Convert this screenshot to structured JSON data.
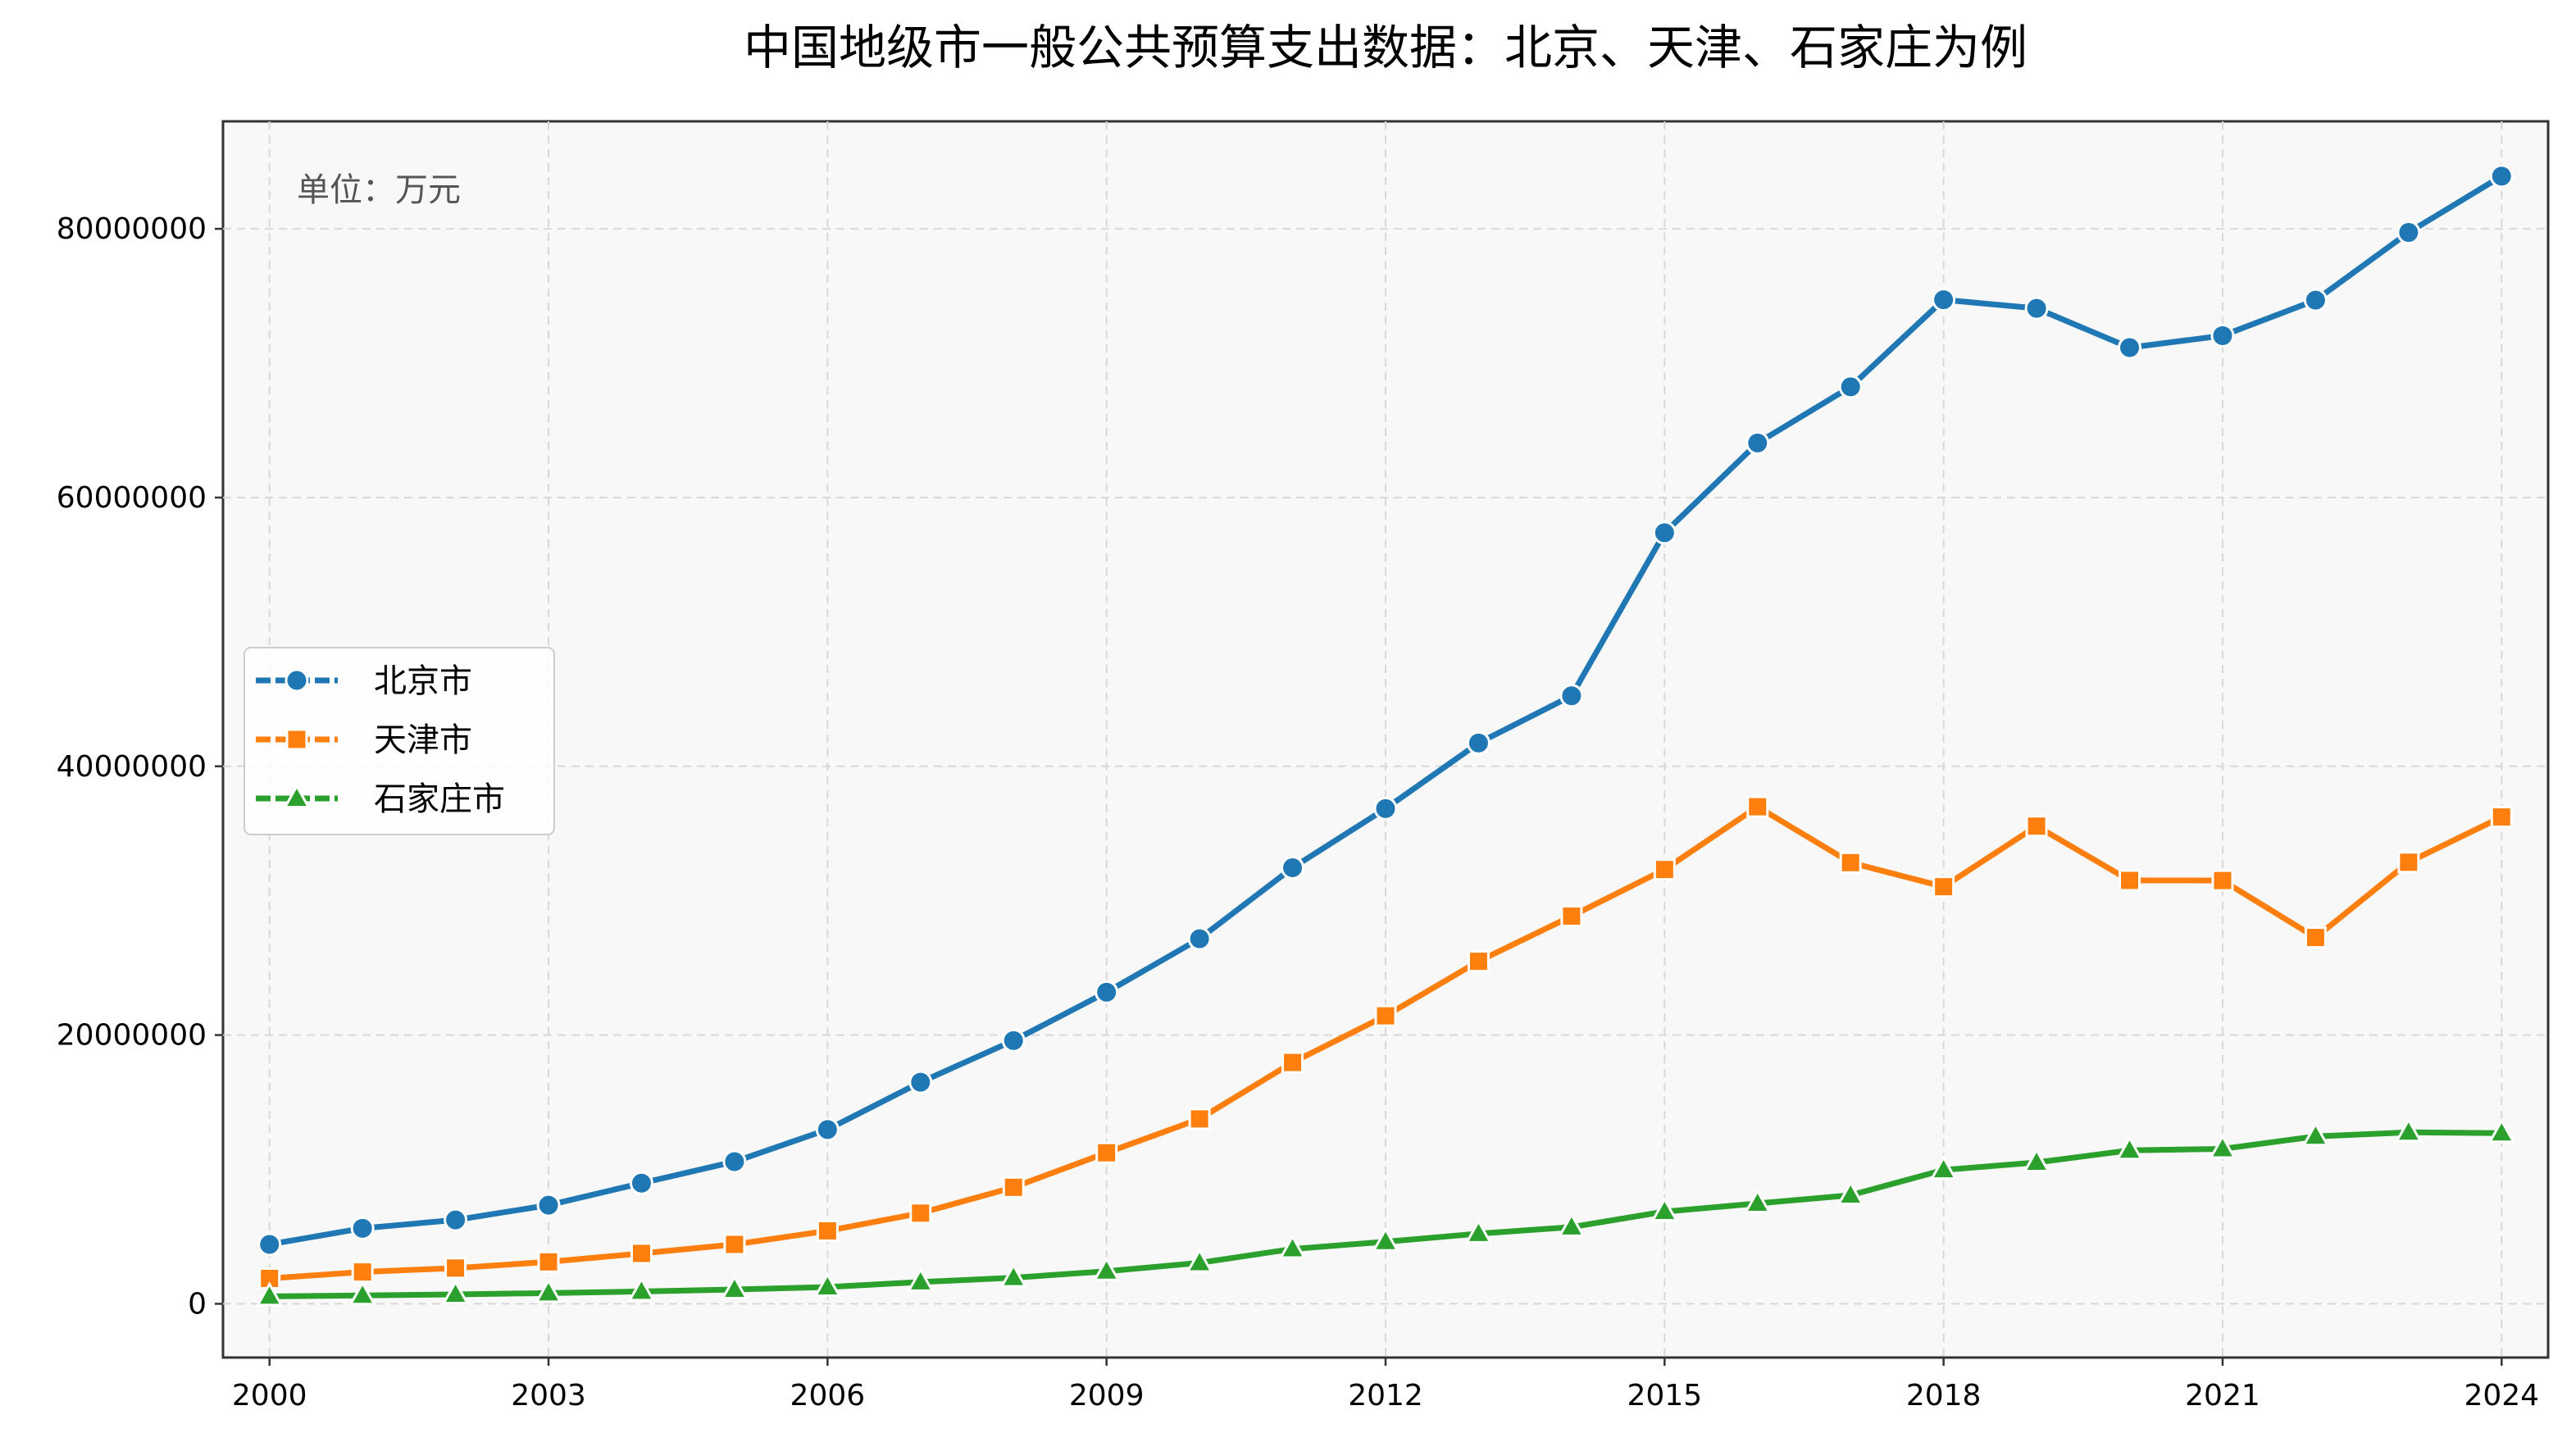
{
  "chart_data": {
    "type": "line",
    "title": "中国地级市一般公共预算支出数据：北京、天津、石家庄为例",
    "annotation": "单位：万元",
    "xlabel": "",
    "ylabel": "",
    "x": [
      2000,
      2001,
      2002,
      2003,
      2004,
      2005,
      2006,
      2007,
      2008,
      2009,
      2010,
      2011,
      2012,
      2013,
      2014,
      2015,
      2016,
      2017,
      2018,
      2019,
      2020,
      2021,
      2022,
      2023,
      2024
    ],
    "x_ticks": [
      2000,
      2003,
      2006,
      2009,
      2012,
      2015,
      2018,
      2021,
      2024
    ],
    "y_ticks": [
      0,
      20000000,
      40000000,
      60000000,
      80000000
    ],
    "xlim": [
      1999.5,
      2024.5
    ],
    "ylim": [
      -4000000,
      88000000
    ],
    "grid": true,
    "legend_position": "center-left",
    "series": [
      {
        "name": "北京市",
        "color": "#1f77b4",
        "marker": "circle",
        "values": [
          4420000,
          5620000,
          6240000,
          7340000,
          8980000,
          10580000,
          12970000,
          16490000,
          19590000,
          23190000,
          27170000,
          32450000,
          36850000,
          41730000,
          45250000,
          57380000,
          64060000,
          68240000,
          74720000,
          74080000,
          71160000,
          72050000,
          74690000,
          79730000,
          83920000
        ]
      },
      {
        "name": "天津市",
        "color": "#ff7f0e",
        "marker": "square",
        "values": [
          1890000,
          2370000,
          2660000,
          3120000,
          3750000,
          4420000,
          5430000,
          6750000,
          8670000,
          11240000,
          13760000,
          17960000,
          21430000,
          25490000,
          28850000,
          32320000,
          36990000,
          32830000,
          31040000,
          35550000,
          31510000,
          31500000,
          27260000,
          32860000,
          36230000
        ]
      },
      {
        "name": "石家庄市",
        "color": "#2ca02c",
        "marker": "triangle",
        "values": [
          550000,
          620000,
          700000,
          800000,
          920000,
          1060000,
          1250000,
          1620000,
          1940000,
          2420000,
          3050000,
          4080000,
          4620000,
          5220000,
          5710000,
          6860000,
          7470000,
          8080000,
          9960000,
          10520000,
          11420000,
          11530000,
          12460000,
          12760000,
          12700000
        ]
      }
    ]
  }
}
